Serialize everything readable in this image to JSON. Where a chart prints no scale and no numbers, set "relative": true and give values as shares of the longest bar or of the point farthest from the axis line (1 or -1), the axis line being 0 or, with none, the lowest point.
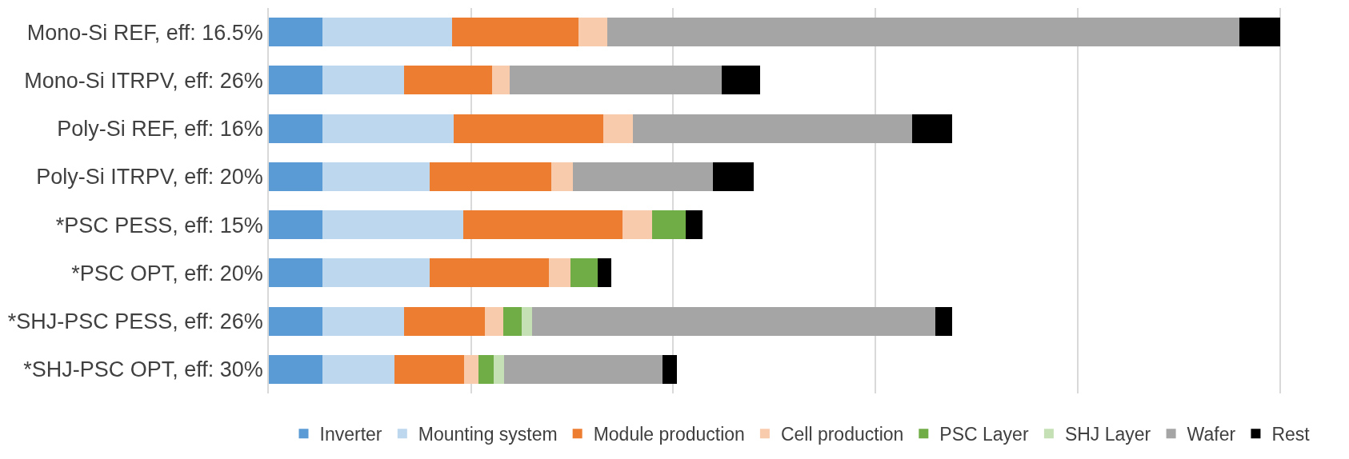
{
  "chart_data": {
    "type": "bar",
    "orientation": "horizontal",
    "stacked": true,
    "relative": true,
    "grid": "x",
    "legend": "bottom",
    "categories": [
      "Mono-Si REF, eff: 16.5%",
      "Mono-Si ITRPV, eff: 26%",
      "Poly-Si REF, eff: 16%",
      "Poly-Si ITRPV, eff: 20%",
      "*PSC PESS, eff: 15%",
      "*PSC OPT, eff: 20%",
      "*SHJ-PSC PESS, eff: 26%",
      "*SHJ-PSC OPT, eff: 30%"
    ],
    "series": [
      {
        "name": "Inverter",
        "color": "#5b9bd5",
        "values": [
          0.053,
          0.053,
          0.053,
          0.053,
          0.053,
          0.053,
          0.053,
          0.053
        ]
      },
      {
        "name": "Mounting system",
        "color": "#bdd7ee",
        "values": [
          0.128,
          0.081,
          0.13,
          0.106,
          0.139,
          0.106,
          0.081,
          0.071
        ]
      },
      {
        "name": "Module production",
        "color": "#ed7d31",
        "values": [
          0.125,
          0.087,
          0.148,
          0.12,
          0.158,
          0.118,
          0.08,
          0.069
        ]
      },
      {
        "name": "Cell production",
        "color": "#f8cbad",
        "values": [
          0.029,
          0.017,
          0.029,
          0.022,
          0.029,
          0.021,
          0.018,
          0.014
        ]
      },
      {
        "name": "PSC Layer",
        "color": "#70ad47",
        "values": [
          null,
          null,
          null,
          null,
          0.033,
          0.027,
          0.018,
          0.015
        ]
      },
      {
        "name": "SHJ Layer",
        "color": "#c5e0b4",
        "values": [
          null,
          null,
          null,
          null,
          null,
          null,
          0.01,
          0.011
        ]
      },
      {
        "name": "Wafer",
        "color": "#a5a5a5",
        "values": [
          0.625,
          0.21,
          0.276,
          0.138,
          null,
          null,
          0.399,
          0.156
        ]
      },
      {
        "name": "Rest",
        "color": "#000000",
        "values": [
          0.04,
          0.038,
          0.04,
          0.041,
          0.017,
          0.014,
          0.017,
          0.015
        ]
      }
    ]
  }
}
